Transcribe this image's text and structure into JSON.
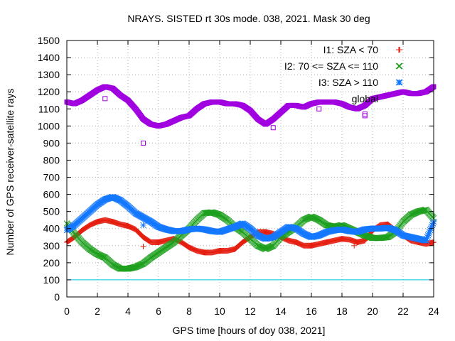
{
  "chart_data": {
    "type": "scatter",
    "title": "NRAYS. SISTED rt 30s mode. 038, 2021. Mask 30 deg",
    "xlabel": "GPS time [hours of doy 038, 2021]",
    "ylabel": "Number of GPS receiver-satellite rays",
    "xlim": [
      0,
      24
    ],
    "ylim": [
      0,
      1500
    ],
    "xticks": [
      0,
      2,
      4,
      6,
      8,
      10,
      12,
      14,
      16,
      18,
      20,
      22,
      24
    ],
    "yticks": [
      0,
      100,
      200,
      300,
      400,
      500,
      600,
      700,
      800,
      900,
      1000,
      1100,
      1200,
      1300,
      1400,
      1500
    ],
    "grid": true,
    "legend_position": "top-right",
    "reference_line": {
      "y": 100,
      "color": "#00c8d7"
    },
    "series": [
      {
        "name": "I1: SZA < 70",
        "marker": "+",
        "color": "#e51e10",
        "x": [
          0,
          0.5,
          1,
          1.5,
          2,
          2.5,
          3,
          3.5,
          4,
          4.5,
          5,
          5.5,
          6,
          6.5,
          7,
          7.5,
          8,
          8.5,
          9,
          9.5,
          10,
          10.5,
          11,
          11.5,
          12,
          12.5,
          13,
          13.5,
          14,
          14.5,
          15,
          15.5,
          16,
          16.5,
          17,
          17.5,
          18,
          18.5,
          19,
          19.5,
          20,
          20.5,
          21,
          21.5,
          22,
          22.5,
          23,
          23.5,
          24
        ],
        "y": [
          320,
          350,
          390,
          420,
          440,
          450,
          440,
          425,
          415,
          395,
          350,
          320,
          320,
          330,
          340,
          320,
          290,
          270,
          260,
          260,
          270,
          270,
          280,
          320,
          350,
          380,
          380,
          370,
          350,
          330,
          320,
          300,
          300,
          310,
          320,
          330,
          340,
          335,
          320,
          330,
          390,
          420,
          425,
          390,
          360,
          330,
          320,
          310,
          320
        ]
      },
      {
        "name": "I2: 70 <= SZA <= 110",
        "marker": "x",
        "color": "#1ea01e",
        "x": [
          0,
          0.5,
          1,
          1.5,
          2,
          2.5,
          3,
          3.5,
          4,
          4.5,
          5,
          5.5,
          6,
          6.5,
          7,
          7.5,
          8,
          8.5,
          9,
          9.5,
          10,
          10.5,
          11,
          11.5,
          12,
          12.5,
          13,
          13.5,
          14,
          14.5,
          15,
          15.5,
          16,
          16.5,
          17,
          17.5,
          18,
          18.5,
          19,
          19.5,
          20,
          20.5,
          21,
          21.5,
          22,
          22.5,
          23,
          23.5,
          24
        ],
        "y": [
          430,
          370,
          320,
          280,
          250,
          230,
          190,
          165,
          165,
          175,
          195,
          230,
          260,
          290,
          320,
          360,
          400,
          450,
          490,
          495,
          480,
          450,
          410,
          380,
          340,
          300,
          280,
          300,
          350,
          380,
          410,
          450,
          470,
          450,
          420,
          410,
          420,
          400,
          380,
          360,
          345,
          345,
          350,
          380,
          440,
          480,
          500,
          510,
          460
        ]
      },
      {
        "name": "I3: SZA > 110",
        "marker": "*",
        "color": "#1478ff",
        "x": [
          0,
          0.5,
          1,
          1.5,
          2,
          2.5,
          3,
          3.5,
          4,
          4.5,
          5,
          5.5,
          6,
          6.5,
          7,
          7.5,
          8,
          8.5,
          9,
          9.5,
          10,
          10.5,
          11,
          11.5,
          12,
          12.5,
          13,
          13.5,
          14,
          14.5,
          15,
          15.5,
          16,
          16.5,
          17,
          17.5,
          18,
          18.5,
          19,
          19.5,
          20,
          20.5,
          21,
          21.5,
          22,
          22.5,
          23,
          23.5,
          24
        ],
        "y": [
          390,
          420,
          460,
          500,
          540,
          570,
          585,
          565,
          530,
          490,
          465,
          440,
          410,
          395,
          385,
          385,
          395,
          400,
          395,
          385,
          380,
          395,
          410,
          430,
          400,
          360,
          340,
          350,
          380,
          410,
          400,
          370,
          350,
          360,
          380,
          390,
          395,
          385,
          380,
          395,
          400,
          400,
          405,
          390,
          360,
          350,
          340,
          330,
          440
        ]
      },
      {
        "name": "global",
        "marker": "square",
        "color": "#a000e0",
        "x": [
          0,
          0.5,
          1,
          1.5,
          2,
          2.5,
          3,
          3.5,
          4,
          4.5,
          5,
          5.5,
          6,
          6.5,
          7,
          7.5,
          8,
          8.5,
          9,
          9.5,
          10,
          10.5,
          11,
          11.5,
          12,
          12.5,
          13,
          13.5,
          14,
          14.5,
          15,
          15.5,
          16,
          16.5,
          17,
          17.5,
          18,
          18.5,
          19,
          19.5,
          20,
          20.5,
          21,
          21.5,
          22,
          22.5,
          23,
          23.5,
          24
        ],
        "y": [
          1140,
          1130,
          1150,
          1180,
          1210,
          1230,
          1220,
          1180,
          1150,
          1100,
          1040,
          1010,
          1000,
          1010,
          1030,
          1050,
          1060,
          1100,
          1130,
          1140,
          1140,
          1130,
          1130,
          1120,
          1090,
          1040,
          1010,
          1040,
          1080,
          1120,
          1120,
          1110,
          1130,
          1140,
          1140,
          1140,
          1130,
          1110,
          1100,
          1120,
          1160,
          1170,
          1180,
          1190,
          1200,
          1190,
          1190,
          1200,
          1230
        ]
      }
    ],
    "outliers": [
      {
        "series": "global",
        "x": 5.0,
        "y": 900
      },
      {
        "series": "global",
        "x": 2.5,
        "y": 1160
      },
      {
        "series": "global",
        "x": 13.5,
        "y": 990
      },
      {
        "series": "global",
        "x": 16.5,
        "y": 1100
      },
      {
        "series": "global",
        "x": 19.5,
        "y": 1070
      },
      {
        "series": "global",
        "x": 19.5,
        "y": 1060
      },
      {
        "series": "I1: SZA < 70",
        "x": 5.0,
        "y": 295
      },
      {
        "series": "I1: SZA < 70",
        "x": 18.8,
        "y": 300
      },
      {
        "series": "I3: SZA > 110",
        "x": 5.0,
        "y": 420
      }
    ]
  }
}
